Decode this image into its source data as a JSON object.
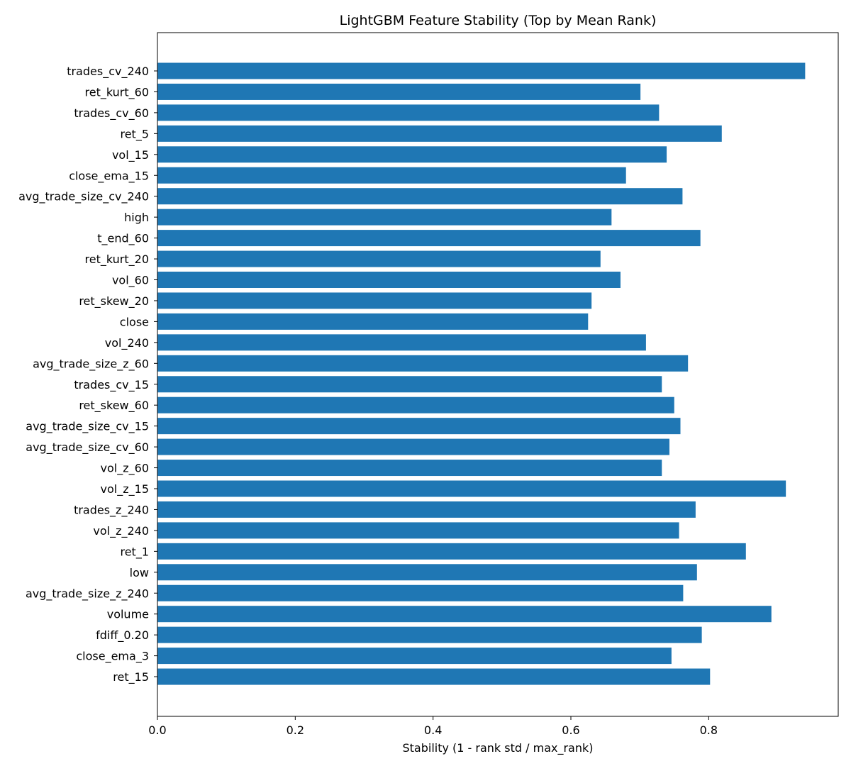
{
  "chart_data": {
    "type": "bar",
    "orientation": "horizontal",
    "title": "LightGBM Feature Stability (Top by Mean Rank)",
    "xlabel": "Stability (1 - rank std / max_rank)",
    "ylabel": "",
    "xlim": [
      0,
      0.988
    ],
    "xticks": [
      "0.0",
      "0.2",
      "0.4",
      "0.6",
      "0.8"
    ],
    "bar_color": "#1f77b4",
    "grid": false,
    "categories": [
      "trades_cv_240",
      "ret_kurt_60",
      "trades_cv_60",
      "ret_5",
      "vol_15",
      "close_ema_15",
      "avg_trade_size_cv_240",
      "high",
      "t_end_60",
      "ret_kurt_20",
      "vol_60",
      "ret_skew_20",
      "close",
      "vol_240",
      "avg_trade_size_z_60",
      "trades_cv_15",
      "ret_skew_60",
      "avg_trade_size_cv_15",
      "avg_trade_size_cv_60",
      "vol_z_60",
      "vol_z_15",
      "trades_z_240",
      "vol_z_240",
      "ret_1",
      "low",
      "avg_trade_size_z_240",
      "volume",
      "fdiff_0.20",
      "close_ema_3",
      "ret_15"
    ],
    "values": [
      0.94,
      0.701,
      0.728,
      0.819,
      0.739,
      0.68,
      0.762,
      0.659,
      0.788,
      0.643,
      0.672,
      0.63,
      0.625,
      0.709,
      0.77,
      0.732,
      0.75,
      0.759,
      0.743,
      0.732,
      0.912,
      0.781,
      0.757,
      0.854,
      0.783,
      0.763,
      0.891,
      0.79,
      0.746,
      0.802
    ]
  }
}
